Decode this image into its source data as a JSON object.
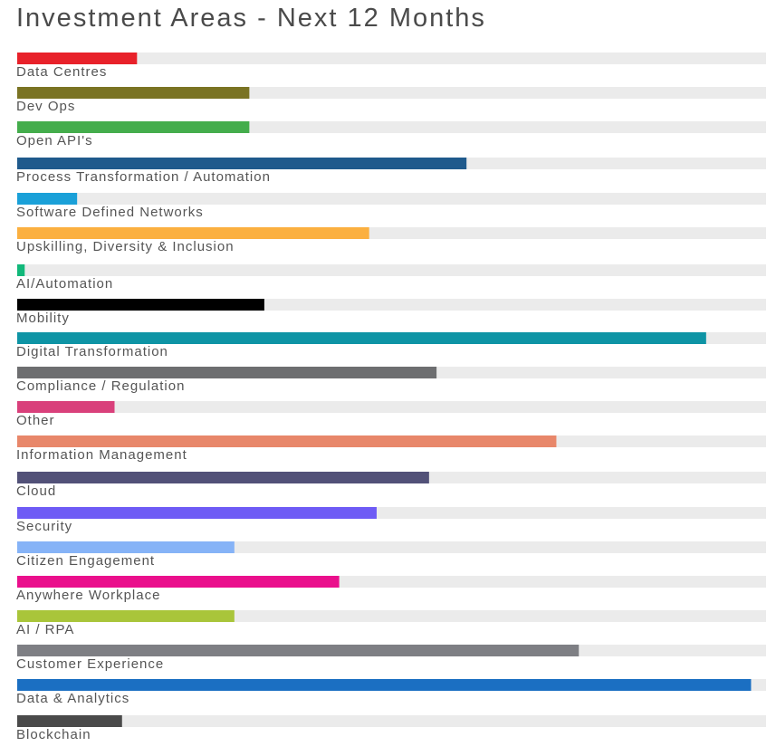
{
  "chart_data": {
    "type": "bar",
    "orientation": "horizontal",
    "title": "Investment Areas - Next 12 Months",
    "xlabel": "",
    "ylabel": "",
    "xlim": [
      0,
      100
    ],
    "grid": false,
    "legend": "none",
    "track_color": "#ebebeb",
    "categories": [
      "Data Centres",
      "Dev Ops",
      "Open API's",
      "Process Transformation / Automation",
      "Software Defined Networks",
      "Upskilling, Diversity & Inclusion",
      "AI/Automation",
      "Mobility",
      "Digital Transformation",
      "Compliance / Regulation",
      "Other",
      "Information Management",
      "Cloud",
      "Security",
      "Citizen Engagement",
      "Anywhere Workplace",
      "AI / RPA",
      "Customer Experience",
      "Data & Analytics",
      "Blockchain"
    ],
    "values": [
      16,
      31,
      31,
      60,
      8,
      47,
      1,
      33,
      92,
      56,
      13,
      72,
      55,
      48,
      29,
      43,
      29,
      75,
      98,
      14
    ],
    "colors": [
      "#e8212a",
      "#7a7323",
      "#44ad4c",
      "#1f5a8c",
      "#1aa0d8",
      "#fbb040",
      "#12b87a",
      "#000000",
      "#0e94a5",
      "#6d6e70",
      "#d9407b",
      "#e8876a",
      "#525178",
      "#6e5bf5",
      "#86b3f7",
      "#ea0f8c",
      "#a9c53a",
      "#7e7f84",
      "#1b6fc2",
      "#4a4a4a"
    ]
  }
}
